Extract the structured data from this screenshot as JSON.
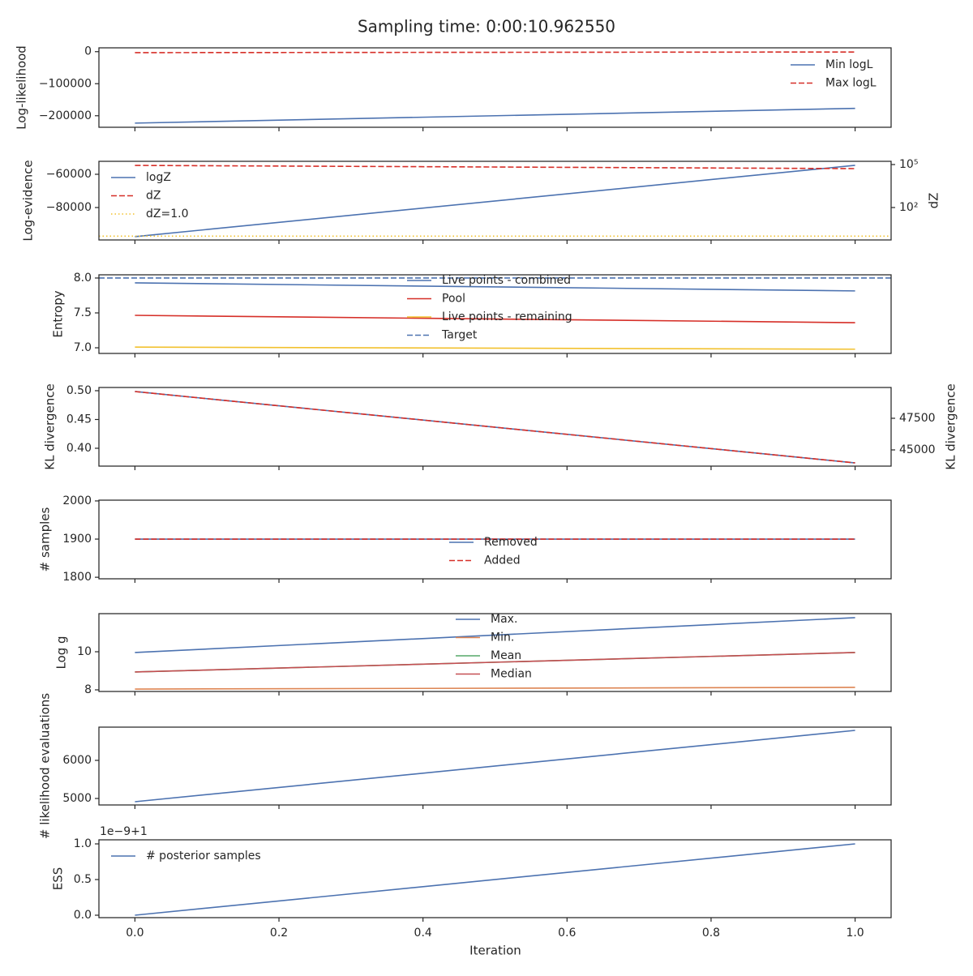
{
  "title": "Sampling time: 0:00:10.962550",
  "x": [
    0,
    1
  ],
  "xlim": [
    -0.05,
    1.05
  ],
  "xticks": [
    {
      "value": 0,
      "label": "0.0"
    },
    {
      "value": 0.2,
      "label": "0.2"
    },
    {
      "value": 0.4,
      "label": "0.4"
    },
    {
      "value": 0.6,
      "label": "0.6"
    },
    {
      "value": 0.8,
      "label": "0.8"
    },
    {
      "value": 1,
      "label": "1.0"
    }
  ],
  "xlabel": "Iteration",
  "chart_data": [
    {
      "type": "line",
      "ylabel": "Log-likelihood",
      "ylim": [
        -236000,
        12000
      ],
      "yticks": [
        {
          "value": 0,
          "label": "0"
        },
        {
          "value": -100000,
          "label": "−100000"
        },
        {
          "value": -200000,
          "label": "−200000"
        }
      ],
      "legend": "upper right",
      "series": [
        {
          "name": "Min logL",
          "color": "#4c72b0",
          "linestyle": "solid",
          "values": [
            -223000,
            -177000
          ]
        },
        {
          "name": "Max logL",
          "color": "#d62f28",
          "linestyle": "dashed",
          "values": [
            -3000,
            -1000
          ]
        }
      ]
    },
    {
      "type": "line",
      "ylabel": "Log-evidence",
      "ylim": [
        -99500,
        -52200
      ],
      "yticks": [
        {
          "value": -60000,
          "label": "−60000"
        },
        {
          "value": -80000,
          "label": "−80000"
        }
      ],
      "y2label": "dZ",
      "y2log": true,
      "y2lim": [
        0.545,
        168000
      ],
      "y2ticks": [
        {
          "value": 100000,
          "label": "10⁵"
        },
        {
          "value": 100,
          "label": "10²"
        }
      ],
      "legend": "upper left",
      "series": [
        {
          "name": "logZ",
          "color": "#4c72b0",
          "linestyle": "solid",
          "values": [
            -97500,
            -54600
          ]
        },
        {
          "name": "dZ",
          "color": "#d62f28",
          "linestyle": "dashed",
          "axis": "y2",
          "values": [
            87000,
            52000
          ]
        },
        {
          "name": "dZ=1.0",
          "color": "#f2c12e",
          "linestyle": "dotted",
          "axis": "y2",
          "hline": 1
        }
      ]
    },
    {
      "type": "line",
      "ylabel": "Entropy",
      "ylim": [
        6.919,
        8.046
      ],
      "yticks": [
        {
          "value": 8,
          "label": "8.0"
        },
        7.5,
        {
          "value": 7,
          "label": "7.0"
        }
      ],
      "legend": "upper center",
      "series": [
        {
          "name": "Live points - combined",
          "color": "#4c72b0",
          "linestyle": "solid",
          "values": [
            7.93,
            7.815
          ]
        },
        {
          "name": "Pool",
          "color": "#d62f28",
          "linestyle": "solid",
          "values": [
            7.465,
            7.36
          ]
        },
        {
          "name": "Live points - remaining",
          "color": "#f2c12e",
          "linestyle": "solid",
          "values": [
            7.01,
            6.98
          ]
        },
        {
          "name": "Target",
          "color": "#4c72b0",
          "linestyle": "dashed",
          "hline": 8
        }
      ]
    },
    {
      "type": "line",
      "ylabel": "KL divergence",
      "ylim": [
        0.369,
        0.5056
      ],
      "yticks": [
        {
          "value": 0.5,
          "label": "0.50"
        },
        0.45,
        {
          "value": 0.4,
          "label": "0.40"
        }
      ],
      "y2label": "KL divergence",
      "y2lim": [
        43718,
        49936
      ],
      "y2ticks": [
        47500,
        45000
      ],
      "series": [
        {
          "color": "#4c72b0",
          "linestyle": "solid",
          "values": [
            0.4986,
            0.3746
          ]
        },
        {
          "color": "#d62f28",
          "linestyle": "dashed",
          "axis": "y2",
          "values": [
            49615,
            43974
          ]
        }
      ]
    },
    {
      "type": "line",
      "ylabel": "# samples",
      "ylim": [
        1796,
        2002
      ],
      "yticks": [
        2000,
        1900,
        1800
      ],
      "legend": "center",
      "series": [
        {
          "name": "Removed",
          "color": "#4c72b0",
          "linestyle": "solid",
          "values": [
            1900,
            1900
          ]
        },
        {
          "name": "Added",
          "color": "#d62f28",
          "linestyle": "dashed",
          "values": [
            1900,
            1900
          ]
        }
      ]
    },
    {
      "type": "line",
      "ylabel": "Log g",
      "ylim": [
        7.915,
        12.0
      ],
      "yticks": [
        10,
        8
      ],
      "legend": "upper center",
      "series": [
        {
          "name": "Max.",
          "color": "#4c72b0",
          "linestyle": "solid",
          "values": [
            9.96,
            11.79
          ]
        },
        {
          "name": "Min.",
          "color": "#dd8452",
          "linestyle": "solid",
          "values": [
            8.04,
            8.13
          ]
        },
        {
          "name": "Mean",
          "color": "#55a868",
          "linestyle": "solid",
          "values": [
            8.94,
            9.96
          ]
        },
        {
          "name": "Median",
          "color": "#c44e52",
          "linestyle": "solid",
          "values": [
            8.94,
            9.96
          ]
        }
      ]
    },
    {
      "type": "line",
      "ylabel": "# likelihood evaluations",
      "ylim": [
        4830,
        6872
      ],
      "yticks": [
        6000,
        5000
      ],
      "series": [
        {
          "color": "#4c72b0",
          "linestyle": "solid",
          "values": [
            4915,
            6787
          ]
        }
      ]
    },
    {
      "type": "line",
      "ylabel": "ESS",
      "ylim": [
        -0.034,
        1.057
      ],
      "offset_text": "1e−9+1",
      "yticks": [
        {
          "value": 0,
          "label": "0.0"
        },
        0.5,
        {
          "value": 1,
          "label": "1.0"
        }
      ],
      "legend": "upper left",
      "series": [
        {
          "name": "# posterior samples",
          "color": "#4c72b0",
          "linestyle": "solid",
          "values": [
            0,
            1
          ]
        }
      ]
    }
  ]
}
